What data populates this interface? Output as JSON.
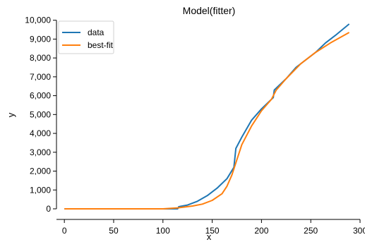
{
  "chart_data": {
    "type": "line",
    "title": "Model(fitter)",
    "xlabel": "x",
    "ylabel": "y",
    "xlim": [
      -8,
      300
    ],
    "ylim": [
      -300,
      10100
    ],
    "x_ticks": [
      0,
      50,
      100,
      150,
      200,
      250,
      300
    ],
    "x_tick_labels": [
      "0",
      "50",
      "100",
      "150",
      "200",
      "250",
      "300"
    ],
    "y_ticks": [
      0,
      1000,
      2000,
      3000,
      4000,
      5000,
      6000,
      7000,
      8000,
      9000,
      10000
    ],
    "y_tick_labels": [
      "0",
      "1,000",
      "2,000",
      "3,000",
      "4,000",
      "5,000",
      "6,000",
      "7,000",
      "8,000",
      "9,000",
      "10,000"
    ],
    "grid": false,
    "legend_position": "top-left",
    "series": [
      {
        "name": "data",
        "color": "#1f77b4",
        "points": [
          [
            0,
            0
          ],
          [
            115,
            0
          ],
          [
            116,
            110
          ],
          [
            125,
            200
          ],
          [
            135,
            400
          ],
          [
            145,
            700
          ],
          [
            155,
            1100
          ],
          [
            165,
            1600
          ],
          [
            172,
            2200
          ],
          [
            174,
            3200
          ],
          [
            180,
            3800
          ],
          [
            190,
            4700
          ],
          [
            200,
            5300
          ],
          [
            212,
            5900
          ],
          [
            213,
            6300
          ],
          [
            225,
            6900
          ],
          [
            235,
            7500
          ],
          [
            245,
            7900
          ],
          [
            255,
            8300
          ],
          [
            265,
            8800
          ],
          [
            275,
            9200
          ],
          [
            289,
            9800
          ]
        ]
      },
      {
        "name": "best-fit",
        "color": "#ff7f0e",
        "points": [
          [
            0,
            0
          ],
          [
            100,
            0
          ],
          [
            115,
            50
          ],
          [
            130,
            150
          ],
          [
            140,
            250
          ],
          [
            150,
            450
          ],
          [
            160,
            800
          ],
          [
            165,
            1200
          ],
          [
            170,
            1800
          ],
          [
            175,
            2600
          ],
          [
            180,
            3400
          ],
          [
            190,
            4400
          ],
          [
            200,
            5200
          ],
          [
            210,
            5800
          ],
          [
            215,
            6300
          ],
          [
            225,
            6900
          ],
          [
            240,
            7700
          ],
          [
            255,
            8300
          ],
          [
            270,
            8800
          ],
          [
            289,
            9350
          ]
        ]
      }
    ]
  }
}
